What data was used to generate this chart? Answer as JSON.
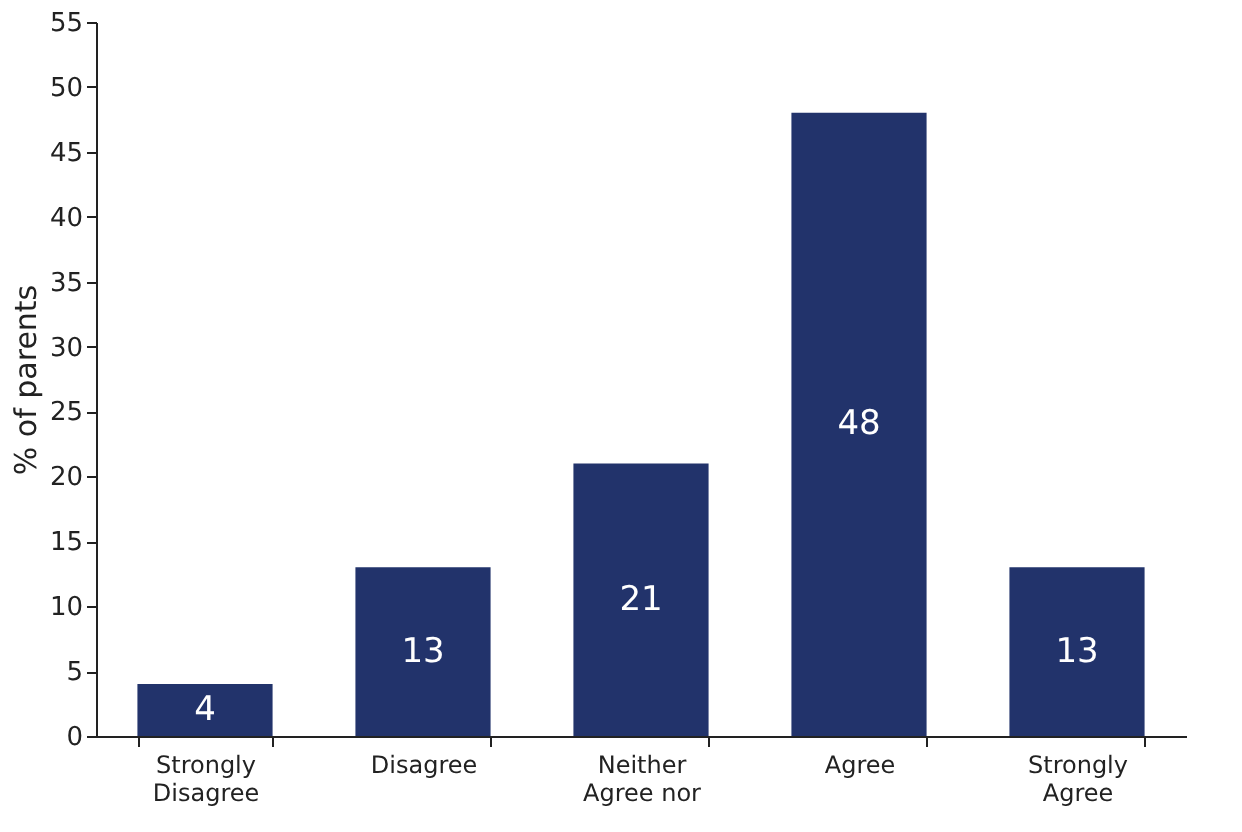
{
  "chart_data": {
    "type": "bar",
    "ylabel": "% of parents",
    "categories": [
      "Strongly\nDisagree",
      "Disagree",
      "Neither\nAgree nor",
      "Agree",
      "Strongly\nAgree"
    ],
    "values": [
      4,
      13,
      21,
      48,
      13
    ],
    "color": "#22336b",
    "ylim": [
      0,
      55
    ],
    "yticks": [
      0,
      5,
      10,
      15,
      20,
      25,
      30,
      35,
      40,
      45,
      50,
      55
    ],
    "grid": false,
    "data_labels": true
  }
}
